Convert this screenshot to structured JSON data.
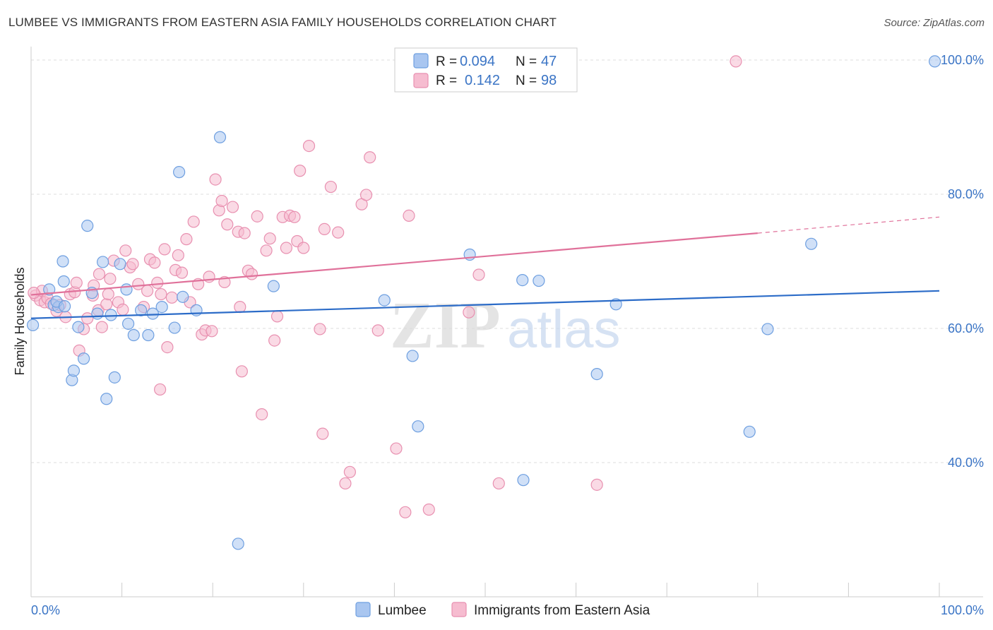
{
  "title": "LUMBEE VS IMMIGRANTS FROM EASTERN ASIA FAMILY HOUSEHOLDS CORRELATION CHART",
  "source": "Source: ZipAtlas.com",
  "watermark": {
    "zip": "ZIP",
    "atlas": "atlas"
  },
  "colors": {
    "lumbee_fill": "#a9c6f0",
    "lumbee_stroke": "#6e9fe0",
    "lumbee_line": "#2c6cc8",
    "immig_fill": "#f6bcd0",
    "immig_stroke": "#e890b0",
    "immig_line": "#e0719a",
    "grid": "#dddddd",
    "axis_label": "#3a74c5"
  },
  "legend": {
    "rows": [
      {
        "r_label": "R =",
        "r_value": "0.094",
        "n_label": "N =",
        "n_value": "47"
      },
      {
        "r_label": "R =",
        "r_value": "0.142",
        "n_label": "N =",
        "n_value": "98"
      }
    ]
  },
  "chart_data": {
    "type": "scatter",
    "title": "LUMBEE VS IMMIGRANTS FROM EASTERN ASIA FAMILY HOUSEHOLDS CORRELATION CHART",
    "xlabel": "",
    "ylabel": "Family Households",
    "xlim": [
      0,
      100
    ],
    "ylim": [
      20,
      102
    ],
    "x_tick_labels": [
      "0.0%",
      "100.0%"
    ],
    "y_ticks": [
      40,
      60,
      80,
      100
    ],
    "y_tick_labels": [
      "40.0%",
      "60.0%",
      "80.0%",
      "100.0%"
    ],
    "grid": true,
    "legend_position": "top-center",
    "series": [
      {
        "name": "Lumbee",
        "r": 0.094,
        "n": 47,
        "trend": {
          "x0": 0,
          "y0": 61.5,
          "x1": 100,
          "y1": 65.6
        },
        "points": [
          [
            0.2,
            60.5
          ],
          [
            2.0,
            65.8
          ],
          [
            2.5,
            63.5
          ],
          [
            3.0,
            63.2
          ],
          [
            2.8,
            64.0
          ],
          [
            3.5,
            70.0
          ],
          [
            3.6,
            67.0
          ],
          [
            3.7,
            63.3
          ],
          [
            4.5,
            52.3
          ],
          [
            4.7,
            53.7
          ],
          [
            5.2,
            60.2
          ],
          [
            5.8,
            55.5
          ],
          [
            6.2,
            75.3
          ],
          [
            6.7,
            65.3
          ],
          [
            7.3,
            62.2
          ],
          [
            7.9,
            69.9
          ],
          [
            8.3,
            49.5
          ],
          [
            8.8,
            62.0
          ],
          [
            9.2,
            52.7
          ],
          [
            9.8,
            69.6
          ],
          [
            10.5,
            65.8
          ],
          [
            10.7,
            60.7
          ],
          [
            11.3,
            59.0
          ],
          [
            12.1,
            62.7
          ],
          [
            12.9,
            59.0
          ],
          [
            13.4,
            62.2
          ],
          [
            14.4,
            63.2
          ],
          [
            15.8,
            60.1
          ],
          [
            16.3,
            83.3
          ],
          [
            16.7,
            64.7
          ],
          [
            18.2,
            62.7
          ],
          [
            20.8,
            88.5
          ],
          [
            22.8,
            27.9
          ],
          [
            26.7,
            66.3
          ],
          [
            38.9,
            64.2
          ],
          [
            42.0,
            55.9
          ],
          [
            42.6,
            45.4
          ],
          [
            48.3,
            71.0
          ],
          [
            54.1,
            67.2
          ],
          [
            54.2,
            37.4
          ],
          [
            55.9,
            67.1
          ],
          [
            62.3,
            53.2
          ],
          [
            64.4,
            63.6
          ],
          [
            79.1,
            44.6
          ],
          [
            81.1,
            59.9
          ],
          [
            85.9,
            72.6
          ],
          [
            99.5,
            99.8
          ]
        ]
      },
      {
        "name": "Immigrants from Eastern Asia",
        "r": 0.142,
        "n": 98,
        "trend": {
          "x0": 0,
          "y0": 65.0,
          "x1": 80,
          "y1": 74.2,
          "dash_to_x": 100,
          "dash_to_y": 76.6
        },
        "points": [
          [
            0.5,
            64.9
          ],
          [
            1.0,
            64.2
          ],
          [
            1.2,
            65.6
          ],
          [
            1.5,
            63.9
          ],
          [
            1.8,
            64.5
          ],
          [
            2.2,
            63.7
          ],
          [
            2.8,
            62.6
          ],
          [
            3.2,
            63.5
          ],
          [
            3.8,
            61.7
          ],
          [
            4.3,
            65.1
          ],
          [
            4.8,
            65.4
          ],
          [
            5.0,
            66.8
          ],
          [
            5.3,
            56.7
          ],
          [
            5.8,
            59.9
          ],
          [
            6.2,
            61.5
          ],
          [
            6.8,
            64.9
          ],
          [
            6.9,
            66.4
          ],
          [
            7.4,
            62.7
          ],
          [
            7.5,
            68.1
          ],
          [
            7.8,
            60.2
          ],
          [
            8.3,
            63.6
          ],
          [
            8.5,
            65.1
          ],
          [
            8.7,
            67.4
          ],
          [
            9.1,
            70.1
          ],
          [
            9.6,
            63.9
          ],
          [
            10.1,
            62.8
          ],
          [
            10.4,
            71.6
          ],
          [
            10.9,
            69.1
          ],
          [
            11.2,
            69.6
          ],
          [
            11.8,
            66.6
          ],
          [
            12.4,
            63.2
          ],
          [
            12.8,
            65.6
          ],
          [
            13.1,
            70.3
          ],
          [
            13.6,
            69.8
          ],
          [
            13.9,
            66.8
          ],
          [
            14.3,
            65.1
          ],
          [
            14.7,
            71.8
          ],
          [
            15.0,
            57.2
          ],
          [
            15.5,
            64.6
          ],
          [
            15.9,
            68.7
          ],
          [
            16.2,
            70.9
          ],
          [
            16.6,
            68.3
          ],
          [
            17.1,
            73.3
          ],
          [
            17.5,
            63.9
          ],
          [
            17.9,
            75.9
          ],
          [
            18.4,
            66.6
          ],
          [
            18.8,
            59.1
          ],
          [
            19.2,
            59.7
          ],
          [
            19.6,
            67.7
          ],
          [
            19.9,
            59.6
          ],
          [
            20.3,
            82.2
          ],
          [
            20.7,
            77.6
          ],
          [
            21.0,
            79.0
          ],
          [
            21.3,
            66.9
          ],
          [
            21.6,
            75.5
          ],
          [
            22.2,
            78.1
          ],
          [
            22.8,
            74.4
          ],
          [
            23.2,
            53.6
          ],
          [
            23.5,
            74.2
          ],
          [
            23.9,
            68.6
          ],
          [
            24.3,
            68.1
          ],
          [
            24.9,
            76.7
          ],
          [
            25.4,
            47.2
          ],
          [
            25.9,
            71.6
          ],
          [
            26.3,
            73.4
          ],
          [
            26.8,
            58.2
          ],
          [
            27.1,
            61.8
          ],
          [
            27.7,
            76.6
          ],
          [
            28.1,
            72.0
          ],
          [
            28.5,
            76.8
          ],
          [
            29.0,
            76.6
          ],
          [
            29.3,
            73.0
          ],
          [
            29.6,
            83.5
          ],
          [
            30.0,
            72.0
          ],
          [
            30.6,
            87.2
          ],
          [
            31.8,
            59.9
          ],
          [
            32.1,
            44.3
          ],
          [
            32.3,
            74.8
          ],
          [
            33.0,
            81.1
          ],
          [
            33.8,
            74.3
          ],
          [
            34.6,
            36.9
          ],
          [
            35.1,
            38.6
          ],
          [
            36.4,
            78.5
          ],
          [
            36.9,
            79.9
          ],
          [
            37.3,
            85.5
          ],
          [
            38.2,
            59.7
          ],
          [
            40.2,
            42.1
          ],
          [
            41.6,
            76.8
          ],
          [
            41.2,
            32.6
          ],
          [
            43.8,
            33.0
          ],
          [
            48.2,
            62.4
          ],
          [
            49.3,
            68.0
          ],
          [
            51.5,
            36.9
          ],
          [
            62.3,
            36.7
          ],
          [
            77.6,
            99.8
          ],
          [
            0.3,
            65.3
          ],
          [
            14.2,
            50.9
          ],
          [
            23.0,
            63.2
          ]
        ]
      }
    ]
  },
  "bottom_legend": [
    "Lumbee",
    "Immigrants from Eastern Asia"
  ]
}
